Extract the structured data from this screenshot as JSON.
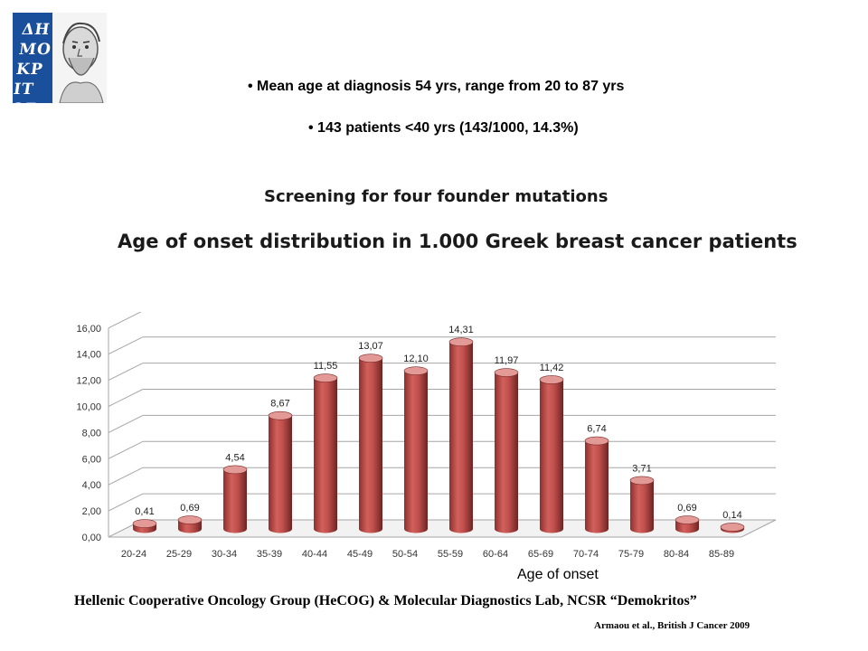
{
  "logo": {
    "text": "ΔΗΜΟΚΡΙΤΟΣ"
  },
  "bullets": [
    "• Mean age at diagnosis 54 yrs, range from 20 to 87 yrs",
    "• 143 patients <40 yrs (143/1000, 14.3%)"
  ],
  "headings": {
    "screening": "Screening for four founder mutations",
    "distribution": "Age of  onset distribution in 1.000 Greek breast cancer patients"
  },
  "footer": "Hellenic Cooperative Oncology Group (HeCOG) & Molecular Diagnostics Lab, NCSR “Demokritos”",
  "citation": "Armaou et al., British J Cancer 2009",
  "colors": {
    "bar": "#c0504d",
    "bar_dark": "#7a2a28",
    "bar_top": "#e39a97",
    "grid": "#a6a6a6"
  },
  "chart_data": {
    "type": "bar",
    "categories": [
      "20-24",
      "25-29",
      "30-34",
      "35-39",
      "40-44",
      "45-49",
      "50-54",
      "55-59",
      "60-64",
      "65-69",
      "70-74",
      "75-79",
      "80-84",
      "85-89"
    ],
    "values": [
      0.41,
      0.69,
      4.54,
      8.67,
      11.55,
      13.07,
      12.1,
      14.31,
      11.97,
      11.42,
      6.74,
      3.71,
      0.69,
      0.14
    ],
    "value_labels": [
      "0,41",
      "0,69",
      "4,54",
      "8,67",
      "11,55",
      "13,07",
      "12,10",
      "14,31",
      "11,97",
      "11,42",
      "6,74",
      "3,71",
      "0,69",
      "0,14"
    ],
    "y_ticks": [
      "0,00",
      "2,00",
      "4,00",
      "6,00",
      "8,00",
      "10,00",
      "12,00",
      "14,00",
      "16,00"
    ],
    "ylim": [
      0,
      16
    ],
    "xlabel": "Age of onset",
    "grid": true,
    "style": "3d-cylinder"
  }
}
